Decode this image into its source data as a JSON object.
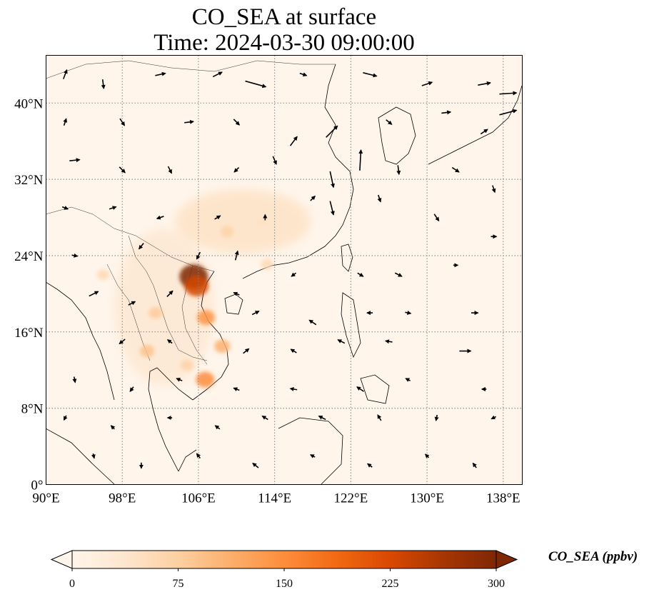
{
  "title": {
    "line1": "CO_SEA at surface",
    "line2": "Time: 2024-03-30 09:00:00"
  },
  "map": {
    "projection": "PlateCarree",
    "lon_range": [
      90,
      140
    ],
    "lat_range": [
      0,
      45
    ],
    "gridlines": "dotted",
    "background_color": "#fff5eb",
    "coastline_color": "#000000",
    "x_ticks": [
      {
        "lon": 90,
        "label": "90°E"
      },
      {
        "lon": 98,
        "label": "98°E"
      },
      {
        "lon": 106,
        "label": "106°E"
      },
      {
        "lon": 114,
        "label": "114°E"
      },
      {
        "lon": 122,
        "label": "122°E"
      },
      {
        "lon": 130,
        "label": "130°E"
      },
      {
        "lon": 138,
        "label": "138°E"
      }
    ],
    "y_ticks": [
      {
        "lat": 0,
        "label": "0°"
      },
      {
        "lat": 8,
        "label": "8°N"
      },
      {
        "lat": 16,
        "label": "16°N"
      },
      {
        "lat": 24,
        "label": "24°N"
      },
      {
        "lat": 32,
        "label": "32°N"
      },
      {
        "lat": 40,
        "label": "40°N"
      }
    ],
    "concentration_hotspots": [
      {
        "lon": 105.5,
        "lat": 21.8,
        "value": 300
      },
      {
        "lon": 105.8,
        "lat": 20.8,
        "value": 230
      },
      {
        "lon": 106.8,
        "lat": 17.5,
        "value": 140
      },
      {
        "lon": 108.5,
        "lat": 14.5,
        "value": 110
      },
      {
        "lon": 106.7,
        "lat": 11.0,
        "value": 150
      },
      {
        "lon": 104.8,
        "lat": 12.5,
        "value": 70
      },
      {
        "lon": 100.6,
        "lat": 14.0,
        "value": 90
      },
      {
        "lon": 101.5,
        "lat": 18.0,
        "value": 80
      },
      {
        "lon": 96.0,
        "lat": 22.0,
        "value": 60
      },
      {
        "lon": 109.0,
        "lat": 26.5,
        "value": 70
      },
      {
        "lon": 112.5,
        "lat": 27.5,
        "value": 45
      },
      {
        "lon": 113.2,
        "lat": 23.1,
        "value": 60
      }
    ],
    "wind_vectors": [
      {
        "lon": 92,
        "lat": 43,
        "u": 0.3,
        "v": 0.8
      },
      {
        "lon": 96,
        "lat": 42,
        "u": 0.1,
        "v": -0.8
      },
      {
        "lon": 102,
        "lat": 43,
        "u": 0.9,
        "v": 0.2
      },
      {
        "lon": 108,
        "lat": 43,
        "u": 0.8,
        "v": 0.4
      },
      {
        "lon": 112,
        "lat": 42,
        "u": 1.8,
        "v": -0.5
      },
      {
        "lon": 117,
        "lat": 43,
        "u": 0.6,
        "v": -0.2
      },
      {
        "lon": 124,
        "lat": 43,
        "u": 1.2,
        "v": -0.3
      },
      {
        "lon": 130,
        "lat": 42,
        "u": 0.9,
        "v": 0.3
      },
      {
        "lon": 136,
        "lat": 42,
        "u": 1.1,
        "v": 0.2
      },
      {
        "lon": 138.5,
        "lat": 41,
        "u": 1.5,
        "v": 0.1
      },
      {
        "lon": 92,
        "lat": 38,
        "u": 0.2,
        "v": 0.6
      },
      {
        "lon": 98,
        "lat": 38,
        "u": 0.4,
        "v": -0.6
      },
      {
        "lon": 105,
        "lat": 38,
        "u": 0.8,
        "v": 0.1
      },
      {
        "lon": 110,
        "lat": 38,
        "u": 0.5,
        "v": -0.5
      },
      {
        "lon": 116,
        "lat": 36,
        "u": 0.6,
        "v": 0.8
      },
      {
        "lon": 120,
        "lat": 37,
        "u": 1.0,
        "v": 1.0
      },
      {
        "lon": 126,
        "lat": 38,
        "u": 0.5,
        "v": -0.4
      },
      {
        "lon": 132,
        "lat": 39,
        "u": 0.8,
        "v": 0.1
      },
      {
        "lon": 136,
        "lat": 37,
        "u": 0.6,
        "v": 0.4
      },
      {
        "lon": 138.5,
        "lat": 39,
        "u": 1.5,
        "v": 0.4
      },
      {
        "lon": 93,
        "lat": 34,
        "u": 0.9,
        "v": 0.1
      },
      {
        "lon": 98,
        "lat": 33,
        "u": 0.5,
        "v": -0.5
      },
      {
        "lon": 103,
        "lat": 33,
        "u": 0.3,
        "v": -0.6
      },
      {
        "lon": 110,
        "lat": 33,
        "u": -0.4,
        "v": -0.4
      },
      {
        "lon": 114,
        "lat": 34,
        "u": 0.3,
        "v": -0.7
      },
      {
        "lon": 120,
        "lat": 32,
        "u": 0.3,
        "v": -1.4
      },
      {
        "lon": 123,
        "lat": 34,
        "u": 0.1,
        "v": 1.8
      },
      {
        "lon": 127,
        "lat": 33,
        "u": 0.1,
        "v": -0.8
      },
      {
        "lon": 133,
        "lat": 33,
        "u": 0.6,
        "v": -0.4
      },
      {
        "lon": 137,
        "lat": 31,
        "u": 0.2,
        "v": -0.6
      },
      {
        "lon": 92,
        "lat": 29,
        "u": 0.5,
        "v": -0.2
      },
      {
        "lon": 97,
        "lat": 29,
        "u": 0.6,
        "v": 0.2
      },
      {
        "lon": 102,
        "lat": 28,
        "u": -0.6,
        "v": -0.2
      },
      {
        "lon": 108,
        "lat": 28,
        "u": 0.5,
        "v": 0.3
      },
      {
        "lon": 113,
        "lat": 28,
        "u": 0.0,
        "v": 0.5
      },
      {
        "lon": 118,
        "lat": 30,
        "u": 0.4,
        "v": 0.4
      },
      {
        "lon": 120,
        "lat": 29,
        "u": 0.3,
        "v": -1.2
      },
      {
        "lon": 125,
        "lat": 30,
        "u": 0.2,
        "v": -0.6
      },
      {
        "lon": 131,
        "lat": 28,
        "u": 0.4,
        "v": -0.6
      },
      {
        "lon": 137,
        "lat": 26,
        "u": 0.5,
        "v": 0.0
      },
      {
        "lon": 93,
        "lat": 24,
        "u": 0.5,
        "v": -0.1
      },
      {
        "lon": 100,
        "lat": 25,
        "u": -0.4,
        "v": -0.5
      },
      {
        "lon": 106,
        "lat": 24,
        "u": -0.3,
        "v": -0.6
      },
      {
        "lon": 110,
        "lat": 24,
        "u": 0.2,
        "v": 0.8
      },
      {
        "lon": 116,
        "lat": 22,
        "u": -0.4,
        "v": -0.3
      },
      {
        "lon": 123,
        "lat": 22,
        "u": 0.5,
        "v": -0.3
      },
      {
        "lon": 127,
        "lat": 22,
        "u": 0.6,
        "v": -0.3
      },
      {
        "lon": 133,
        "lat": 23,
        "u": 0.4,
        "v": 0.0
      },
      {
        "lon": 95,
        "lat": 20,
        "u": 0.8,
        "v": 0.4
      },
      {
        "lon": 99,
        "lat": 19,
        "u": 0.6,
        "v": 0.3
      },
      {
        "lon": 103,
        "lat": 20,
        "u": 0.5,
        "v": 0.5
      },
      {
        "lon": 110,
        "lat": 20,
        "u": -0.5,
        "v": 0.2
      },
      {
        "lon": 112,
        "lat": 18,
        "u": 0.6,
        "v": 0.3
      },
      {
        "lon": 118,
        "lat": 17,
        "u": -0.6,
        "v": 0.4
      },
      {
        "lon": 124,
        "lat": 18,
        "u": -0.5,
        "v": 0.0
      },
      {
        "lon": 128,
        "lat": 18,
        "u": 0.5,
        "v": -0.1
      },
      {
        "lon": 135,
        "lat": 18,
        "u": 0.6,
        "v": 0.0
      },
      {
        "lon": 98,
        "lat": 15,
        "u": -0.5,
        "v": -0.4
      },
      {
        "lon": 103,
        "lat": 15,
        "u": -0.4,
        "v": 0.3
      },
      {
        "lon": 111,
        "lat": 14,
        "u": 0.5,
        "v": 0.4
      },
      {
        "lon": 116,
        "lat": 14,
        "u": -0.5,
        "v": 0.3
      },
      {
        "lon": 121,
        "lat": 15,
        "u": -0.6,
        "v": 0.3
      },
      {
        "lon": 126,
        "lat": 15,
        "u": -0.6,
        "v": 0.1
      },
      {
        "lon": 134,
        "lat": 14,
        "u": 1.0,
        "v": 0.0
      },
      {
        "lon": 93,
        "lat": 11,
        "u": 0.1,
        "v": -0.5
      },
      {
        "lon": 99,
        "lat": 10,
        "u": -0.3,
        "v": -0.4
      },
      {
        "lon": 104,
        "lat": 11,
        "u": -0.5,
        "v": 0.2
      },
      {
        "lon": 110,
        "lat": 10,
        "u": -0.5,
        "v": 0.2
      },
      {
        "lon": 116,
        "lat": 10,
        "u": -0.6,
        "v": 0.1
      },
      {
        "lon": 123,
        "lat": 10,
        "u": -0.6,
        "v": 0.4
      },
      {
        "lon": 128,
        "lat": 11,
        "u": -0.4,
        "v": 0.2
      },
      {
        "lon": 136,
        "lat": 10,
        "u": -0.4,
        "v": 0.0
      },
      {
        "lon": 92,
        "lat": 7,
        "u": -0.2,
        "v": -0.4
      },
      {
        "lon": 97,
        "lat": 6,
        "u": -0.3,
        "v": 0.3
      },
      {
        "lon": 103,
        "lat": 7,
        "u": -0.4,
        "v": 0.0
      },
      {
        "lon": 108,
        "lat": 6,
        "u": -0.4,
        "v": 0.3
      },
      {
        "lon": 113,
        "lat": 7,
        "u": -0.5,
        "v": 0.3
      },
      {
        "lon": 119,
        "lat": 7,
        "u": -0.6,
        "v": 0.3
      },
      {
        "lon": 125,
        "lat": 7,
        "u": -0.3,
        "v": 0.5
      },
      {
        "lon": 131,
        "lat": 7,
        "u": -0.1,
        "v": -0.5
      },
      {
        "lon": 137,
        "lat": 7,
        "u": -0.4,
        "v": -0.2
      },
      {
        "lon": 95,
        "lat": 3,
        "u": 0.1,
        "v": -0.4
      },
      {
        "lon": 100,
        "lat": 2,
        "u": 0.0,
        "v": -0.5
      },
      {
        "lon": 106,
        "lat": 3,
        "u": -0.3,
        "v": 0.4
      },
      {
        "lon": 112,
        "lat": 2,
        "u": -0.5,
        "v": 0.4
      },
      {
        "lon": 118,
        "lat": 3,
        "u": -0.4,
        "v": 0.2
      },
      {
        "lon": 124,
        "lat": 2,
        "u": -0.4,
        "v": 0.3
      },
      {
        "lon": 130,
        "lat": 3,
        "u": -0.3,
        "v": 0.3
      },
      {
        "lon": 135,
        "lat": 2,
        "u": -0.3,
        "v": 0.4
      }
    ]
  },
  "colorbar": {
    "label": "CO_SEA (ppbv)",
    "min": 0,
    "max": 300,
    "extend": "both",
    "colors": [
      "#fff5eb",
      "#fee6ce",
      "#fdd0a2",
      "#fdae6b",
      "#fd8d3c",
      "#f16913",
      "#d94801",
      "#a63603",
      "#7f2704"
    ],
    "ticks": [
      {
        "value": 0,
        "label": "0"
      },
      {
        "value": 75,
        "label": "75"
      },
      {
        "value": 150,
        "label": "150"
      },
      {
        "value": 225,
        "label": "225"
      },
      {
        "value": 300,
        "label": "300"
      }
    ]
  }
}
